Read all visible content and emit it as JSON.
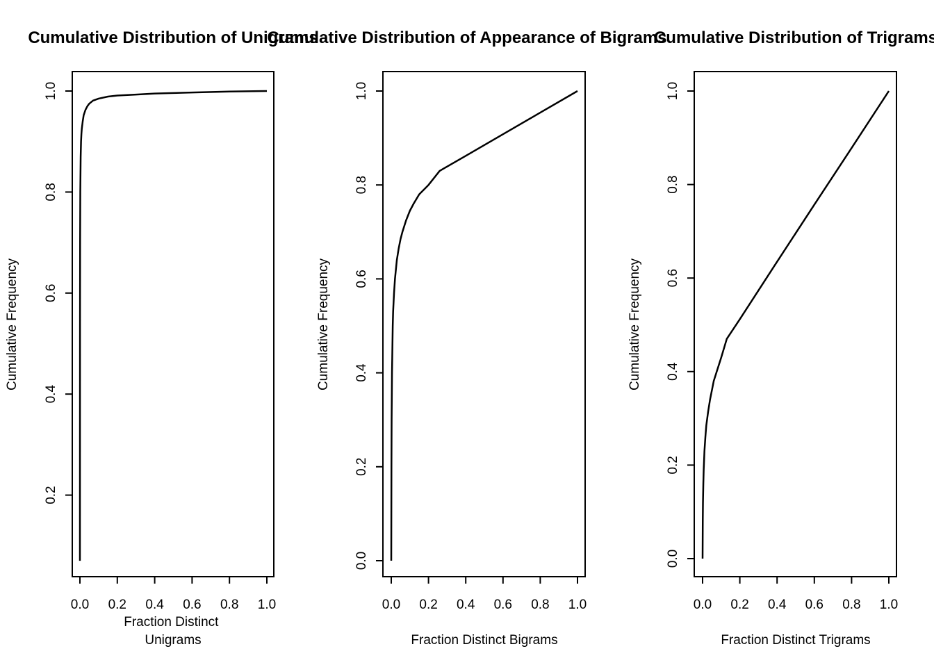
{
  "chart_data": [
    {
      "type": "line",
      "title": "Cumulative Distribution of Unigrams",
      "xlabel": "Fraction Distinct\nUnigrams",
      "ylabel": "Cumulative Frequency",
      "xlim": [
        0,
        1
      ],
      "ylim": [
        0.07,
        1.0
      ],
      "xticks": [
        "0.0",
        "0.2",
        "0.4",
        "0.6",
        "0.8",
        "1.0"
      ],
      "yticks": [
        "0.2",
        "0.4",
        "0.6",
        "0.8",
        "1.0"
      ],
      "grid": false,
      "series": [
        {
          "x": [
            0.0,
            0.0005,
            0.001,
            0.002,
            0.004,
            0.006,
            0.008,
            0.01,
            0.015,
            0.02,
            0.03,
            0.04,
            0.05,
            0.07,
            0.1,
            0.15,
            0.2,
            0.3,
            0.4,
            0.5,
            0.6,
            0.8,
            1.0
          ],
          "y": [
            0.07,
            0.55,
            0.7,
            0.8,
            0.87,
            0.9,
            0.915,
            0.925,
            0.94,
            0.952,
            0.963,
            0.97,
            0.975,
            0.981,
            0.985,
            0.989,
            0.991,
            0.993,
            0.995,
            0.996,
            0.997,
            0.999,
            1.0
          ]
        }
      ]
    },
    {
      "type": "line",
      "title": "Cumulative Distribution of Appearance of Bigrams",
      "xlabel": "Fraction Distinct Bigrams",
      "ylabel": "Cumulative Frequency",
      "xlim": [
        0,
        1
      ],
      "ylim": [
        0.0,
        1.0
      ],
      "xticks": [
        "0.0",
        "0.2",
        "0.4",
        "0.6",
        "0.8",
        "1.0"
      ],
      "yticks": [
        "0.0",
        "0.2",
        "0.4",
        "0.6",
        "0.8",
        "1.0"
      ],
      "grid": false,
      "series": [
        {
          "x": [
            0.0,
            0.001,
            0.002,
            0.004,
            0.006,
            0.008,
            0.01,
            0.015,
            0.02,
            0.03,
            0.04,
            0.05,
            0.06,
            0.08,
            0.1,
            0.12,
            0.15,
            0.2,
            0.26,
            0.4,
            0.6,
            0.8,
            1.0
          ],
          "y": [
            0.0,
            0.2,
            0.3,
            0.4,
            0.45,
            0.5,
            0.53,
            0.57,
            0.6,
            0.64,
            0.665,
            0.685,
            0.7,
            0.725,
            0.745,
            0.76,
            0.78,
            0.8,
            0.83,
            0.862,
            0.908,
            0.954,
            1.0
          ]
        }
      ]
    },
    {
      "type": "line",
      "title": "Cumulative Distribution of Trigrams",
      "xlabel": "Fraction Distinct Trigrams",
      "ylabel": "Cumulative Frequency",
      "xlim": [
        0,
        1
      ],
      "ylim": [
        0.0,
        1.0
      ],
      "xticks": [
        "0.0",
        "0.2",
        "0.4",
        "0.6",
        "0.8",
        "1.0"
      ],
      "yticks": [
        "0.0",
        "0.2",
        "0.4",
        "0.6",
        "0.8",
        "1.0"
      ],
      "grid": false,
      "series": [
        {
          "x": [
            0.0,
            0.001,
            0.002,
            0.004,
            0.006,
            0.01,
            0.015,
            0.02,
            0.03,
            0.04,
            0.05,
            0.06,
            0.08,
            0.1,
            0.13,
            0.2,
            0.4,
            0.6,
            0.8,
            1.0
          ],
          "y": [
            0.0,
            0.08,
            0.12,
            0.16,
            0.19,
            0.23,
            0.26,
            0.285,
            0.315,
            0.34,
            0.36,
            0.38,
            0.405,
            0.43,
            0.47,
            0.512,
            0.635,
            0.757,
            0.878,
            1.0
          ]
        }
      ]
    }
  ]
}
